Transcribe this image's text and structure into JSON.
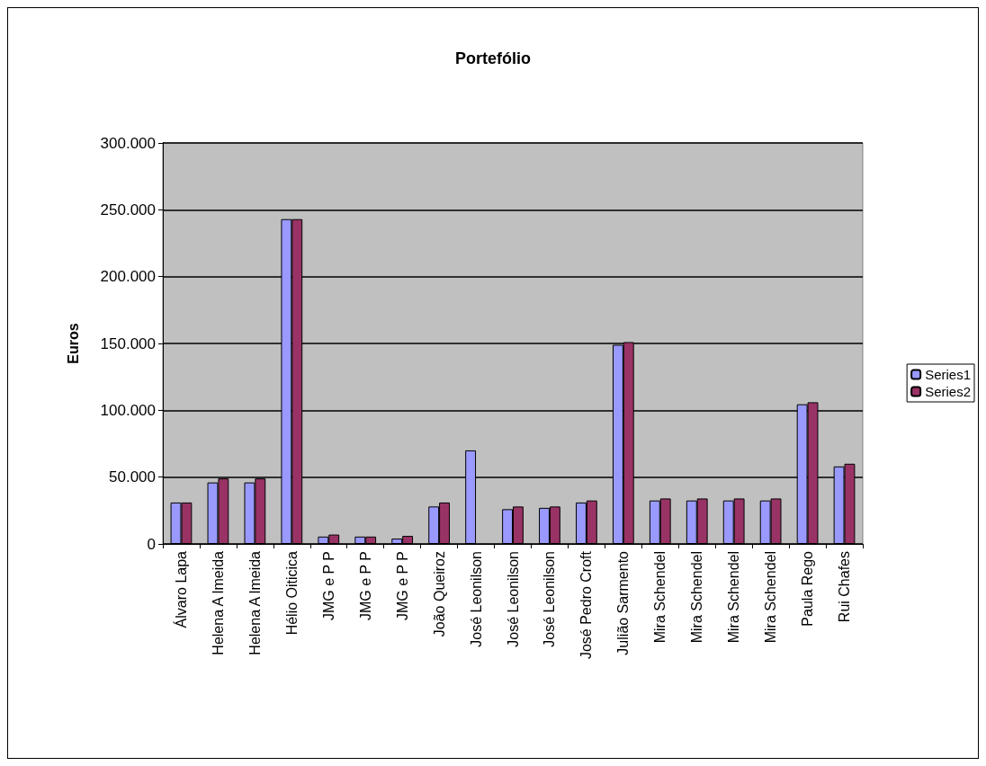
{
  "chart_data": {
    "type": "bar",
    "title": "Portefólio",
    "ylabel": "Euros",
    "categories": [
      "Álvaro Lapa",
      "Helena A lmeida",
      "Helena A lmeida",
      "Hélio Oiticica",
      "JMG e P P",
      "JMG e P P",
      "JMG e P P",
      "João Queiroz",
      "José Leonilson",
      "José Leonilson",
      "José Leonilson",
      "José Pedro Croft",
      "Julião Sarmento",
      "Mira Schendel",
      "Mira Schendel",
      "Mira Schendel",
      "Mira Schendel",
      "Paula Rego",
      "Rui Chafes"
    ],
    "series": [
      {
        "name": "Series1",
        "color": "#9999ff",
        "values": [
          31000,
          46000,
          46000,
          243000,
          5500,
          5500,
          4000,
          28000,
          70000,
          26000,
          27000,
          31000,
          149000,
          32500,
          32500,
          32500,
          32500,
          104500,
          58000
        ]
      },
      {
        "name": "Series2",
        "color": "#993366",
        "values": [
          31000,
          49000,
          49000,
          243000,
          7000,
          5500,
          6000,
          31000,
          null,
          28000,
          28000,
          32500,
          151000,
          34000,
          34000,
          34000,
          34000,
          106000,
          60000
        ]
      }
    ],
    "ylim": [
      0,
      300000
    ],
    "yticks": [
      {
        "value": 0,
        "label": "0"
      },
      {
        "value": 50000,
        "label": "50.000"
      },
      {
        "value": 100000,
        "label": "100.000"
      },
      {
        "value": 150000,
        "label": "150.000"
      },
      {
        "value": 200000,
        "label": "200.000"
      },
      {
        "value": 250000,
        "label": "250.000"
      },
      {
        "value": 300000,
        "label": "300.000"
      }
    ],
    "grid": "y",
    "legend": "right"
  }
}
